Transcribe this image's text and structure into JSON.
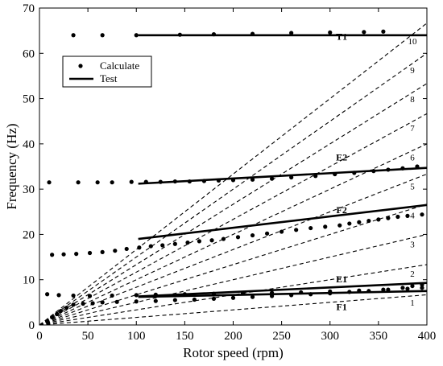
{
  "chart_data": {
    "type": "scatter",
    "xlabel": "Rotor speed (rpm)",
    "ylabel": "Frequency (Hz)",
    "xlim": [
      0,
      400
    ],
    "ylim": [
      0,
      70
    ],
    "x_ticks": [
      0,
      50,
      100,
      150,
      200,
      250,
      300,
      350,
      400
    ],
    "y_ticks": [
      0,
      10,
      20,
      30,
      40,
      50,
      60,
      70
    ],
    "grid": false,
    "legend": {
      "placement": "top-left",
      "entries": [
        {
          "label": "Calculate",
          "marker": "dot"
        },
        {
          "label": "Test",
          "marker": "solid-line"
        }
      ]
    },
    "harmonic_lines": {
      "style": "dashed",
      "orders": [
        1,
        2,
        3,
        4,
        5,
        6,
        7,
        8,
        9,
        10
      ],
      "labels": [
        "1",
        "2",
        "3",
        "4",
        "5",
        "6",
        "7",
        "8",
        "9",
        "10"
      ],
      "formula": "frequency = order * rotor_speed / 60"
    },
    "mode_labels": [
      {
        "text": "T1",
        "x": 312,
        "y": 63
      },
      {
        "text": "E2",
        "x": 312,
        "y": 36.3
      },
      {
        "text": "F2",
        "x": 312,
        "y": 24.7
      },
      {
        "text": "E1",
        "x": 312,
        "y": 9.4
      },
      {
        "text": "F1",
        "x": 312,
        "y": 3.3
      }
    ],
    "calculate": [
      {
        "name": "T1",
        "points": [
          [
            35,
            64
          ],
          [
            65,
            64
          ],
          [
            100,
            64
          ],
          [
            145,
            64.1
          ],
          [
            180,
            64.2
          ],
          [
            220,
            64.3
          ],
          [
            260,
            64.5
          ],
          [
            300,
            64.6
          ],
          [
            335,
            64.7
          ],
          [
            355,
            64.8
          ]
        ]
      },
      {
        "name": "E2",
        "points": [
          [
            10,
            31.5
          ],
          [
            40,
            31.5
          ],
          [
            60,
            31.5
          ],
          [
            75,
            31.5
          ],
          [
            95,
            31.6
          ],
          [
            110,
            31.6
          ],
          [
            125,
            31.6
          ],
          [
            140,
            31.7
          ],
          [
            155,
            31.7
          ],
          [
            170,
            31.8
          ],
          [
            185,
            31.9
          ],
          [
            200,
            32.0
          ],
          [
            220,
            32.1
          ],
          [
            240,
            32.3
          ],
          [
            260,
            32.6
          ],
          [
            285,
            32.9
          ],
          [
            305,
            33.3
          ],
          [
            325,
            33.6
          ],
          [
            345,
            34.0
          ],
          [
            360,
            34.3
          ],
          [
            375,
            34.6
          ],
          [
            390,
            35.0
          ]
        ]
      },
      {
        "name": "F2",
        "points": [
          [
            13,
            15.5
          ],
          [
            25,
            15.6
          ],
          [
            38,
            15.7
          ],
          [
            52,
            15.9
          ],
          [
            65,
            16.1
          ],
          [
            78,
            16.4
          ],
          [
            90,
            16.8
          ],
          [
            103,
            17.1
          ],
          [
            115,
            17.4
          ],
          [
            127,
            17.6
          ],
          [
            140,
            17.9
          ],
          [
            153,
            18.2
          ],
          [
            165,
            18.5
          ],
          [
            178,
            18.7
          ],
          [
            190,
            19.0
          ],
          [
            205,
            19.4
          ],
          [
            220,
            19.8
          ],
          [
            235,
            20.2
          ],
          [
            250,
            20.6
          ],
          [
            265,
            21.0
          ],
          [
            280,
            21.4
          ],
          [
            295,
            21.7
          ],
          [
            310,
            22.0
          ],
          [
            320,
            22.4
          ],
          [
            330,
            22.7
          ],
          [
            340,
            23.0
          ],
          [
            350,
            23.3
          ],
          [
            360,
            23.6
          ],
          [
            370,
            23.9
          ],
          [
            380,
            24.1
          ],
          [
            395,
            24.4
          ]
        ]
      },
      {
        "name": "E1",
        "points": [
          [
            8,
            6.8
          ],
          [
            20,
            6.6
          ],
          [
            35,
            6.5
          ],
          [
            52,
            6.4
          ],
          [
            75,
            6.5
          ],
          [
            100,
            6.6
          ],
          [
            120,
            6.7
          ],
          [
            150,
            6.8
          ],
          [
            180,
            6.9
          ],
          [
            210,
            7.0
          ],
          [
            240,
            7.1
          ],
          [
            270,
            7.2
          ],
          [
            300,
            7.4
          ],
          [
            330,
            7.6
          ],
          [
            355,
            7.8
          ],
          [
            380,
            8.0
          ],
          [
            395,
            8.2
          ]
        ]
      },
      {
        "name": "F1",
        "points": [
          [
            8,
            0.8
          ],
          [
            13,
            1.7
          ],
          [
            18,
            2.4
          ],
          [
            22,
            3.1
          ],
          [
            28,
            3.8
          ],
          [
            35,
            4.5
          ],
          [
            45,
            4.7
          ],
          [
            55,
            4.8
          ],
          [
            65,
            5.0
          ],
          [
            80,
            5.1
          ],
          [
            100,
            5.2
          ],
          [
            120,
            5.3
          ],
          [
            140,
            5.5
          ],
          [
            160,
            5.6
          ],
          [
            180,
            5.8
          ],
          [
            200,
            6.0
          ],
          [
            220,
            6.2
          ],
          [
            240,
            6.4
          ],
          [
            260,
            6.6
          ],
          [
            280,
            6.8
          ],
          [
            300,
            7.0
          ],
          [
            320,
            7.3
          ],
          [
            340,
            7.5
          ],
          [
            360,
            7.8
          ],
          [
            375,
            8.2
          ],
          [
            385,
            8.6
          ],
          [
            395,
            8.9
          ]
        ]
      }
    ],
    "test": [
      {
        "name": "T1",
        "points": [
          [
            102,
            64
          ],
          [
            400,
            64
          ]
        ]
      },
      {
        "name": "E2",
        "points": [
          [
            102,
            31.2
          ],
          [
            400,
            34.7
          ]
        ]
      },
      {
        "name": "F2",
        "points": [
          [
            102,
            19
          ],
          [
            400,
            26.5
          ]
        ]
      },
      {
        "name": "E1",
        "points": [
          [
            102,
            6.3
          ],
          [
            400,
            9.3
          ]
        ]
      },
      {
        "name": "F1",
        "points": [
          [
            102,
            6.2
          ],
          [
            400,
            7.5
          ]
        ]
      }
    ]
  }
}
